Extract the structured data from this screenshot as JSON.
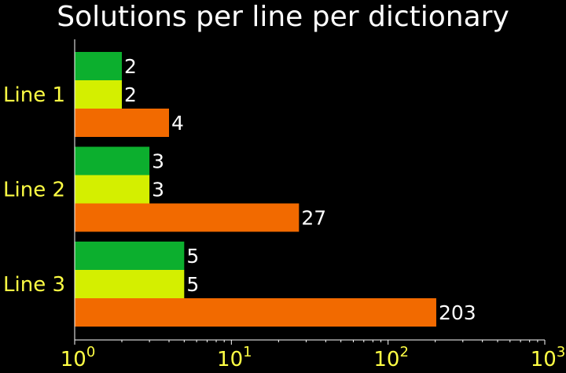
{
  "chart_data": {
    "type": "bar",
    "orientation": "horizontal",
    "title": "Solutions per line per dictionary",
    "categories": [
      "Line 1",
      "Line 2",
      "Line 3"
    ],
    "series": [
      {
        "color": "#0caf2e",
        "values": [
          2,
          3,
          5
        ]
      },
      {
        "color": "#d4ef00",
        "values": [
          2,
          3,
          5
        ]
      },
      {
        "color": "#f26a00",
        "values": [
          4,
          27,
          203
        ]
      }
    ],
    "x_scale": "log",
    "xlim": [
      1,
      1000
    ],
    "xticks": [
      {
        "base": "10",
        "exp": "0"
      },
      {
        "base": "10",
        "exp": "1"
      },
      {
        "base": "10",
        "exp": "2"
      },
      {
        "base": "10",
        "exp": "3"
      }
    ],
    "grid": false,
    "legend": "none",
    "colors": {
      "background": "#000000",
      "axis": "#ffffff",
      "category_text": "#ffff44",
      "value_text": "#ffffff"
    }
  }
}
